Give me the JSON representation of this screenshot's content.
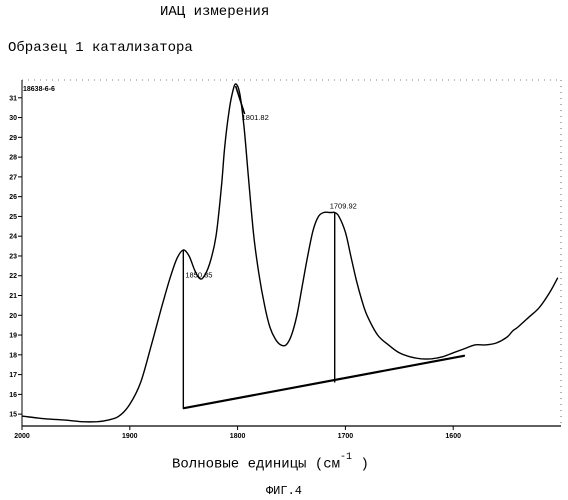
{
  "header": {
    "title": "ИАЦ измерения",
    "sample_label": "Образец 1 катализатора"
  },
  "chart_data": {
    "type": "line",
    "id_label": "18638-6-6",
    "xlabel_main": "Волновые единицы (см",
    "xlabel_exp": "-1",
    "xlabel_end": " )",
    "figure_label": "ФИГ.4",
    "xlim": [
      2000,
      1500
    ],
    "ylim": [
      14.4,
      31.9
    ],
    "x_ticks": [
      2000,
      1900,
      1800,
      1700,
      1600
    ],
    "x_tick_labels": [
      "2000",
      "1900",
      "1800",
      "1700",
      "1600"
    ],
    "y_ticks": [
      15,
      16,
      17,
      18,
      19,
      20,
      21,
      22,
      23,
      24,
      25,
      26,
      27,
      28,
      29,
      30,
      31
    ],
    "y_tick_labels": [
      "15",
      "16",
      "17",
      "18",
      "19",
      "20",
      "21",
      "22",
      "23",
      "24",
      "25",
      "26",
      "27",
      "28",
      "29",
      "30",
      "31"
    ],
    "grid": false,
    "series": [
      {
        "x": [
          2000,
          1985,
          1975,
          1960,
          1945,
          1930,
          1920,
          1910,
          1900,
          1890,
          1880,
          1870,
          1862,
          1856,
          1850.35,
          1845,
          1840,
          1836,
          1832,
          1826,
          1820,
          1815,
          1812,
          1808,
          1805,
          1801.82,
          1798,
          1794,
          1790,
          1785,
          1780,
          1775,
          1770,
          1765,
          1760,
          1755,
          1750,
          1745,
          1740,
          1735,
          1730,
          1725,
          1720,
          1715,
          1712,
          1709.92,
          1706,
          1700,
          1695,
          1690,
          1685,
          1680,
          1670,
          1660,
          1650,
          1640,
          1630,
          1620,
          1610,
          1600,
          1590,
          1580,
          1570,
          1560,
          1550,
          1545,
          1540,
          1530,
          1520,
          1510,
          1503
        ],
        "y": [
          14.9,
          14.8,
          14.75,
          14.7,
          14.62,
          14.62,
          14.7,
          14.9,
          15.5,
          16.6,
          18.5,
          20.5,
          22.0,
          22.9,
          23.3,
          23.0,
          22.3,
          21.9,
          21.9,
          22.6,
          24.0,
          26.5,
          28.5,
          30.3,
          31.2,
          31.7,
          31.2,
          29.5,
          27.0,
          24.0,
          22.0,
          20.5,
          19.4,
          18.8,
          18.5,
          18.5,
          19.0,
          20.0,
          21.5,
          23.0,
          24.3,
          25.0,
          25.2,
          25.2,
          25.2,
          25.2,
          25.0,
          24.2,
          23.0,
          21.8,
          20.8,
          20.0,
          19.0,
          18.5,
          18.1,
          17.9,
          17.8,
          17.8,
          17.9,
          18.1,
          18.3,
          18.5,
          18.5,
          18.6,
          18.9,
          19.2,
          19.4,
          19.9,
          20.4,
          21.2,
          21.9
        ]
      }
    ],
    "baseline": {
      "x": [
        1850,
        1590
      ],
      "y": [
        15.3,
        17.95
      ]
    },
    "peaks": [
      {
        "label": "1850.35",
        "x": 1850.35,
        "y": 23.3,
        "base_y": 15.3
      },
      {
        "label": "1801.82",
        "x": 1801.82,
        "y": 31.7
      },
      {
        "label": "1709.92",
        "x": 1709.92,
        "y": 25.2,
        "base_y": 16.6
      }
    ]
  }
}
